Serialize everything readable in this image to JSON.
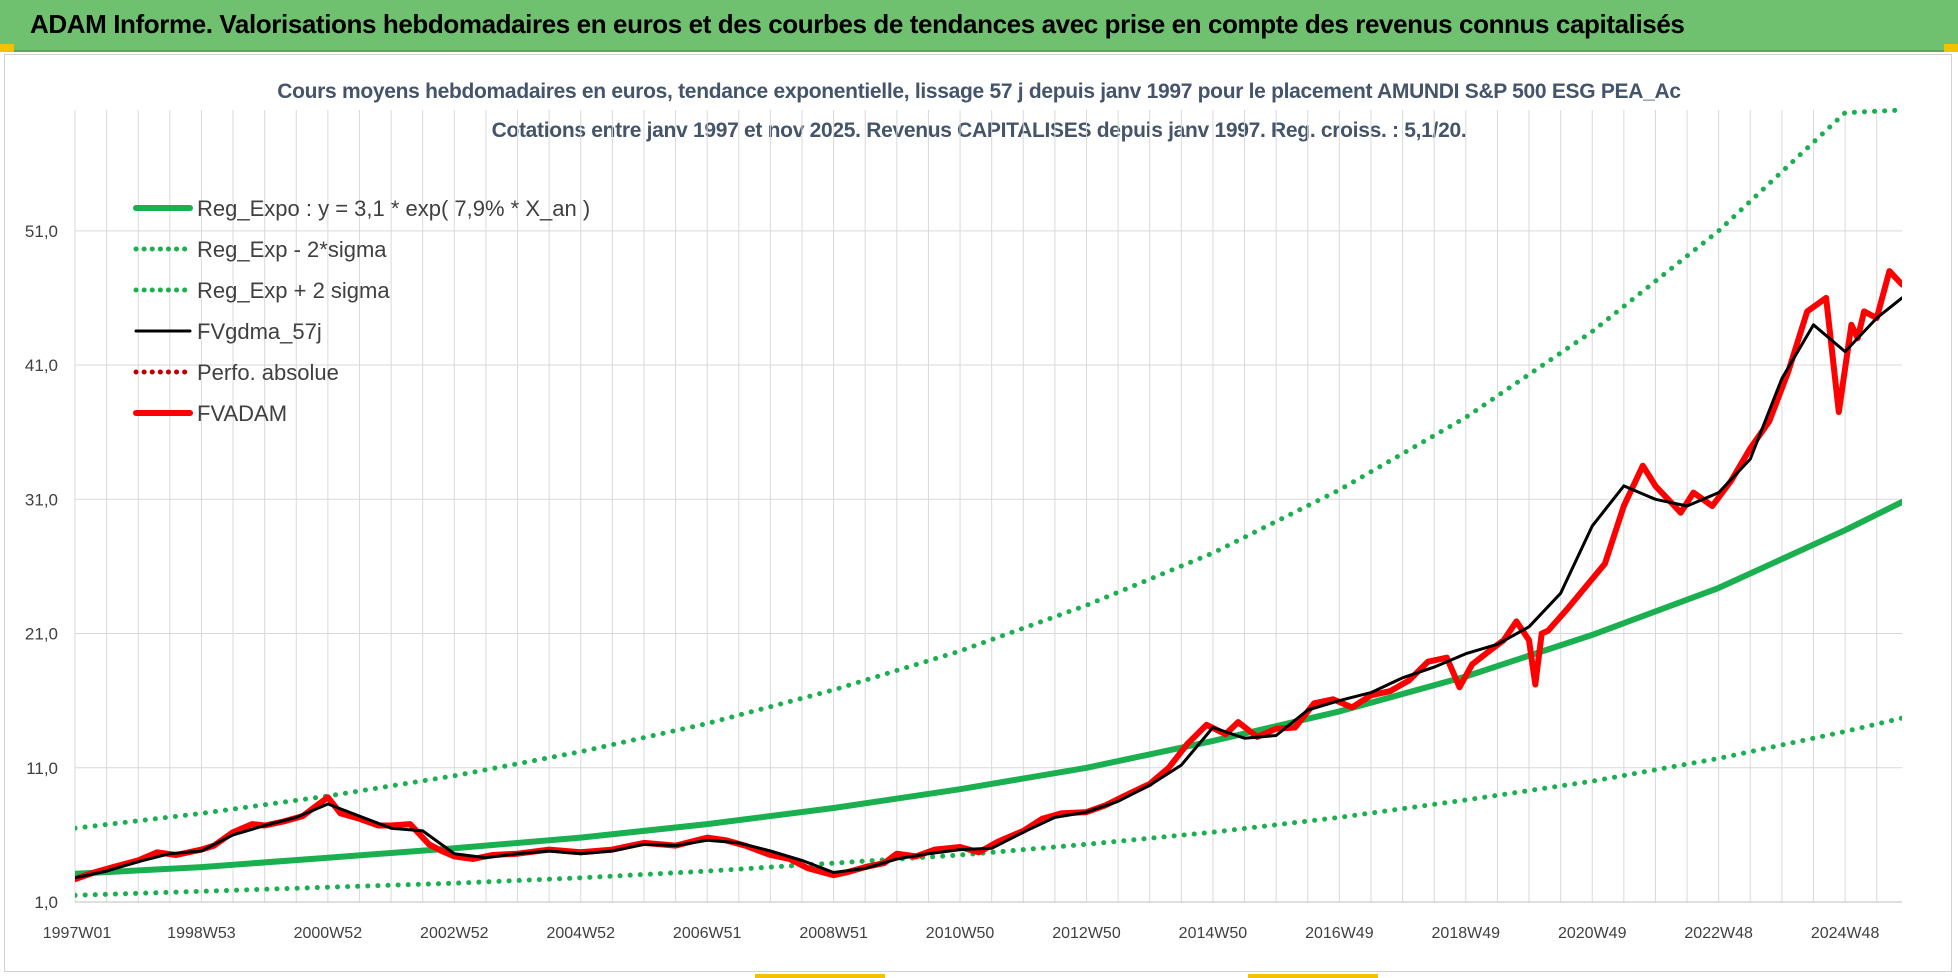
{
  "header": {
    "title": "ADAM Informe. Valorisations hebdomadaires en euros et des courbes de tendances avec prise en compte des revenus connus capitalisés"
  },
  "colors": {
    "banner": "#6fc06f",
    "trend_green": "#1aaf4f",
    "fv_black": "#000000",
    "fvadam_red": "#ff0000",
    "perfo_red": "#c00000",
    "title_text": "#44546a",
    "grid": "#d9d9d9"
  },
  "chart_data": {
    "type": "line",
    "title": "Cours moyens hebdomadaires en euros, tendance exponentielle, lissage 57 j depuis janv 1997 pour le placement AMUNDI S&P 500 ESG PEA_Ac",
    "subtitle": "Cotations entre janv 1997 et nov 2025. Revenus CAPITALISES depuis janv 1997. Reg. croiss. : 5,1/20.",
    "xlabel": "",
    "ylabel": "",
    "xlim": [
      1997.0,
      2025.9
    ],
    "ylim": [
      1.0,
      60.0
    ],
    "y_ticks": [
      "1,0",
      "11,0",
      "21,0",
      "31,0",
      "41,0",
      "51,0"
    ],
    "y_tick_values": [
      1,
      11,
      21,
      31,
      41,
      51
    ],
    "x_ticks": [
      "1997W01",
      "1998W53",
      "2000W52",
      "2002W52",
      "2004W52",
      "2006W51",
      "2008W51",
      "2010W50",
      "2012W50",
      "2014W50",
      "2016W49",
      "2018W49",
      "2020W49",
      "2022W48",
      "2024W48"
    ],
    "x_tick_values": [
      1997.0,
      1999.0,
      2001.0,
      2003.0,
      2005.0,
      2007.0,
      2009.0,
      2011.0,
      2013.0,
      2015.0,
      2017.0,
      2019.0,
      2021.0,
      2023.0,
      2025.0
    ],
    "grid": true,
    "legend_position": "top-left",
    "legend": [
      "Reg_Expo : y = 3,1 * exp( 7,9% *  X_an )",
      "Reg_Exp - 2*sigma",
      "Reg_Exp + 2 sigma",
      "FVgdma_57j",
      "Perfo. absolue",
      "FVADAM"
    ],
    "series": [
      {
        "name": "Reg_Expo : y = 3,1 * exp( 7,9% *  X_an )",
        "style": "solid-thick",
        "color": "#1aaf4f",
        "x": [
          1997,
          1999,
          2001,
          2003,
          2005,
          2007,
          2009,
          2011,
          2013,
          2015,
          2017,
          2019,
          2021,
          2023,
          2025,
          2025.9
        ],
        "y": [
          3.1,
          3.6,
          4.3,
          5.0,
          5.8,
          6.8,
          8.0,
          9.4,
          11.0,
          13.0,
          15.2,
          17.8,
          20.9,
          24.4,
          28.7,
          30.8
        ]
      },
      {
        "name": "Reg_Exp - 2*sigma",
        "style": "dotted",
        "color": "#1aaf4f",
        "x": [
          1997,
          1999,
          2001,
          2003,
          2005,
          2007,
          2009,
          2011,
          2013,
          2015,
          2017,
          2019,
          2021,
          2023,
          2025,
          2025.9
        ],
        "y": [
          1.5,
          1.8,
          2.1,
          2.4,
          2.8,
          3.3,
          3.9,
          4.5,
          5.3,
          6.2,
          7.3,
          8.6,
          10.0,
          11.7,
          13.7,
          14.7
        ]
      },
      {
        "name": "Reg_Exp + 2 sigma",
        "style": "dotted",
        "color": "#1aaf4f",
        "x": [
          1997,
          1999,
          2001,
          2003,
          2005,
          2007,
          2009,
          2011,
          2013,
          2015,
          2017,
          2019,
          2021,
          2023,
          2025,
          2025.9
        ],
        "y": [
          6.5,
          7.6,
          8.9,
          10.4,
          12.2,
          14.3,
          16.8,
          19.7,
          23.1,
          27.0,
          31.7,
          37.1,
          43.5,
          51.0,
          59.8,
          60.0
        ]
      },
      {
        "name": "FVgdma_57j",
        "style": "solid",
        "color": "#000000",
        "x": [
          1997.0,
          1997.5,
          1998.0,
          1998.5,
          1999.0,
          1999.5,
          2000.0,
          2000.5,
          2001.0,
          2001.5,
          2002.0,
          2002.5,
          2003.0,
          2003.5,
          2004.0,
          2004.5,
          2005.0,
          2005.5,
          2006.0,
          2006.5,
          2007.0,
          2007.5,
          2008.0,
          2008.5,
          2009.0,
          2009.5,
          2010.0,
          2010.5,
          2011.0,
          2011.5,
          2012.0,
          2012.5,
          2013.0,
          2013.5,
          2014.0,
          2014.5,
          2015.0,
          2015.5,
          2016.0,
          2016.5,
          2017.0,
          2017.5,
          2018.0,
          2018.5,
          2019.0,
          2019.5,
          2020.0,
          2020.5,
          2021.0,
          2021.5,
          2022.0,
          2022.5,
          2023.0,
          2023.5,
          2024.0,
          2024.5,
          2025.0,
          2025.5,
          2025.9
        ],
        "y": [
          2.8,
          3.3,
          4.0,
          4.6,
          4.8,
          6.0,
          6.7,
          7.3,
          8.3,
          7.4,
          6.5,
          6.3,
          4.6,
          4.3,
          4.6,
          4.8,
          4.6,
          4.8,
          5.3,
          5.2,
          5.6,
          5.4,
          4.8,
          4.1,
          3.2,
          3.5,
          4.2,
          4.6,
          4.9,
          5.0,
          6.2,
          7.3,
          7.7,
          8.5,
          9.7,
          11.2,
          14.0,
          13.2,
          13.4,
          15.3,
          16.0,
          16.6,
          17.7,
          18.5,
          19.5,
          20.2,
          21.5,
          24.0,
          29.0,
          32.0,
          31.0,
          30.5,
          31.5,
          34.0,
          40.0,
          44.0,
          42.0,
          44.5,
          46.0
        ]
      },
      {
        "name": "Perfo. absolue",
        "style": "dotted",
        "color": "#c00000",
        "x": [],
        "y": []
      },
      {
        "name": "FVADAM",
        "style": "solid-thick",
        "color": "#ff0000",
        "x": [
          1997.0,
          1997.3,
          1997.6,
          1998.0,
          1998.3,
          1998.6,
          1999.0,
          1999.2,
          1999.5,
          1999.8,
          2000.0,
          2000.3,
          2000.6,
          2000.8,
          2001.0,
          2001.2,
          2001.5,
          2001.8,
          2002.0,
          2002.3,
          2002.6,
          2002.8,
          2003.0,
          2003.3,
          2003.6,
          2004.0,
          2004.5,
          2005.0,
          2005.5,
          2006.0,
          2006.5,
          2007.0,
          2007.3,
          2007.6,
          2008.0,
          2008.3,
          2008.6,
          2009.0,
          2009.2,
          2009.5,
          2009.8,
          2010.0,
          2010.3,
          2010.6,
          2011.0,
          2011.3,
          2011.6,
          2012.0,
          2012.3,
          2012.6,
          2013.0,
          2013.3,
          2013.6,
          2014.0,
          2014.3,
          2014.6,
          2014.9,
          2015.2,
          2015.4,
          2015.7,
          2016.0,
          2016.3,
          2016.6,
          2016.9,
          2017.2,
          2017.5,
          2017.8,
          2018.1,
          2018.4,
          2018.7,
          2018.9,
          2019.1,
          2019.4,
          2019.6,
          2019.8,
          2020.0,
          2020.1,
          2020.2,
          2020.3,
          2020.6,
          2020.9,
          2021.2,
          2021.5,
          2021.8,
          2022.0,
          2022.2,
          2022.4,
          2022.6,
          2022.9,
          2023.2,
          2023.5,
          2023.8,
          2024.1,
          2024.4,
          2024.7,
          2024.9,
          2025.1,
          2025.2,
          2025.3,
          2025.5,
          2025.7,
          2025.8,
          2025.9
        ],
        "y": [
          2.7,
          3.2,
          3.6,
          4.1,
          4.7,
          4.5,
          4.9,
          5.2,
          6.2,
          6.8,
          6.7,
          7.0,
          7.4,
          8.1,
          8.8,
          7.6,
          7.2,
          6.7,
          6.7,
          6.8,
          5.3,
          4.8,
          4.4,
          4.2,
          4.5,
          4.6,
          4.9,
          4.7,
          4.9,
          5.4,
          5.2,
          5.8,
          5.6,
          5.2,
          4.5,
          4.2,
          3.5,
          3.0,
          3.2,
          3.6,
          3.9,
          4.6,
          4.4,
          4.9,
          5.1,
          4.7,
          5.5,
          6.3,
          7.2,
          7.6,
          7.7,
          8.2,
          8.9,
          9.8,
          11.0,
          12.8,
          14.2,
          13.5,
          14.4,
          13.3,
          13.9,
          14.0,
          15.8,
          16.1,
          15.5,
          16.4,
          16.7,
          17.5,
          18.9,
          19.2,
          17.0,
          18.7,
          19.8,
          20.5,
          21.9,
          20.5,
          17.2,
          21.0,
          21.2,
          22.8,
          24.5,
          26.2,
          30.5,
          33.5,
          32.0,
          31.0,
          30.0,
          31.5,
          30.5,
          32.4,
          34.8,
          36.8,
          40.5,
          45.0,
          46.0,
          37.5,
          44.0,
          43.0,
          45.0,
          44.5,
          48.0,
          47.5,
          47.0
        ]
      }
    ]
  }
}
